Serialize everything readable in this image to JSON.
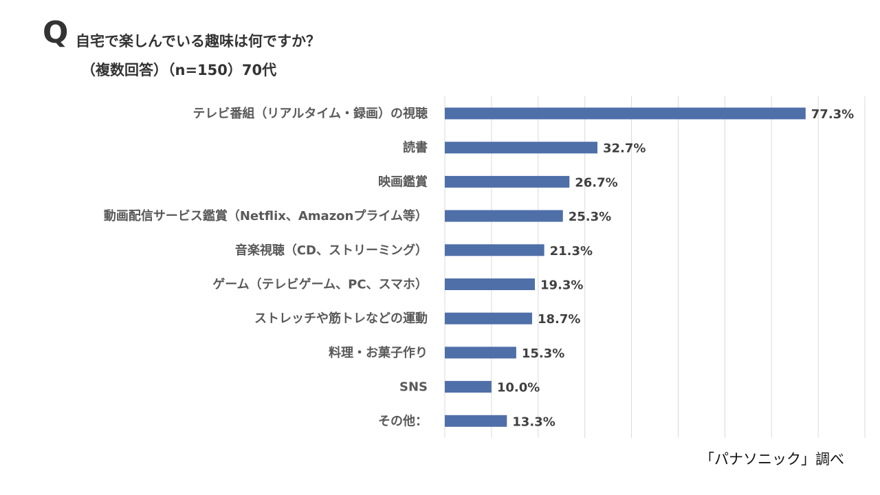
{
  "question": {
    "mark": "Q",
    "text": "自宅で楽しんでいる趣味は何ですか？",
    "subtext": "（複数回答）（n=150）70代"
  },
  "source": "「パナソニック」調べ",
  "colors": {
    "bar": "#4f6fa9",
    "grid": "#d9d9d9",
    "text": "#595959"
  },
  "chart_data": {
    "type": "bar",
    "orientation": "horizontal",
    "categories": [
      "テレビ番組（リアルタイム・録画）の視聴",
      "読書",
      "映画鑑賞",
      "動画配信サービス鑑賞（Netflix、Amazonプライム等）",
      "音楽視聴（CD、ストリーミング）",
      "ゲーム（テレビゲーム、PC、スマホ）",
      "ストレッチや筋トレなどの運動",
      "料理・お菓子作り",
      "SNS",
      "その他："
    ],
    "values": [
      77.3,
      32.7,
      26.7,
      25.3,
      21.3,
      19.3,
      18.7,
      15.3,
      10.0,
      13.3
    ],
    "value_labels": [
      "77.3%",
      "32.7%",
      "26.7%",
      "25.3%",
      "21.3%",
      "19.3%",
      "18.7%",
      "15.3%",
      "10.0%",
      "13.3%"
    ],
    "xlim": [
      0,
      90
    ],
    "grid": true,
    "legend": "none"
  }
}
